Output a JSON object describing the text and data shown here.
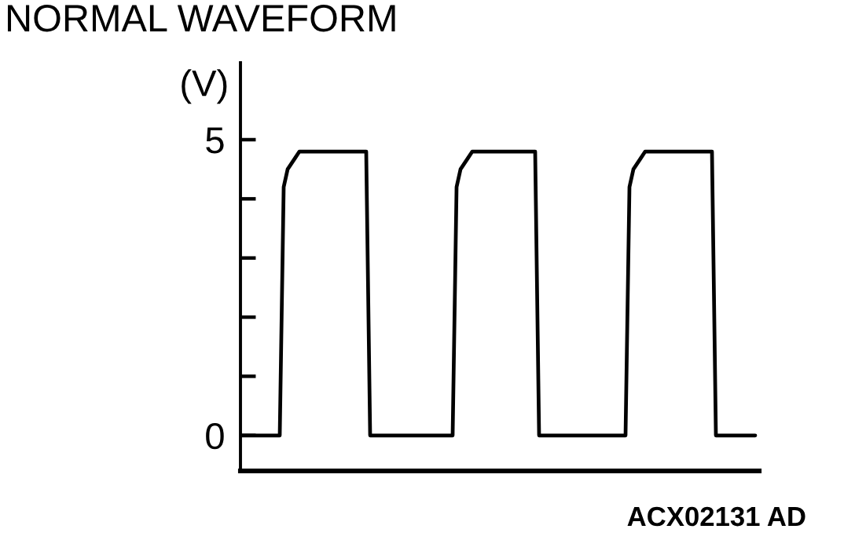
{
  "chart_data": {
    "type": "line",
    "title": "NORMAL WAVEFORM",
    "ylabel": "(V)",
    "annotations": [
      "ACX02131 AD"
    ],
    "categories": [
      null,
      null,
      null,
      null,
      null,
      null,
      null,
      null,
      null,
      null,
      null,
      null,
      null,
      null,
      null,
      null,
      null,
      null,
      null,
      null,
      null,
      null,
      null,
      null,
      null,
      null,
      null,
      null,
      null,
      null,
      null,
      null,
      null,
      null,
      null,
      null,
      null,
      null,
      null,
      null,
      null,
      null,
      null,
      null,
      null,
      null,
      null,
      null,
      null,
      null,
      null,
      null,
      null,
      null,
      null,
      null,
      null,
      null,
      null,
      null,
      null,
      null,
      null,
      null,
      null,
      null,
      null,
      null,
      null,
      null,
      null,
      null,
      null,
      null,
      null,
      null,
      null,
      null,
      null,
      null,
      null,
      null,
      null,
      null,
      null,
      null,
      null,
      null,
      null,
      null,
      null,
      null,
      null,
      null,
      null,
      null,
      null,
      null,
      null,
      null,
      null,
      null,
      null,
      null,
      null,
      null,
      null,
      null,
      null,
      null,
      null,
      null,
      null,
      null,
      null,
      null,
      null,
      null,
      null,
      null,
      null,
      null,
      null,
      null,
      null,
      null,
      null,
      null,
      null,
      null,
      null,
      null
    ],
    "series": [
      {
        "color": "#000000",
        "values": [
          0,
          0,
          0,
          0,
          0,
          0,
          0,
          0,
          0,
          0,
          0,
          4.2,
          4.5,
          4.6,
          4.7,
          4.8,
          4.8,
          4.8,
          4.8,
          4.8,
          4.8,
          4.8,
          4.8,
          4.8,
          4.8,
          4.8,
          4.8,
          4.8,
          4.8,
          4.8,
          4.8,
          4.8,
          4.8,
          0,
          0,
          0,
          0,
          0,
          0,
          0,
          0,
          0,
          0,
          0,
          0,
          0,
          0,
          0,
          0,
          0,
          0,
          0,
          0,
          0,
          0,
          4.2,
          4.5,
          4.6,
          4.7,
          4.8,
          4.8,
          4.8,
          4.8,
          4.8,
          4.8,
          4.8,
          4.8,
          4.8,
          4.8,
          4.8,
          4.8,
          4.8,
          4.8,
          4.8,
          4.8,
          4.8,
          0,
          0,
          0,
          0,
          0,
          0,
          0,
          0,
          0,
          0,
          0,
          0,
          0,
          0,
          0,
          0,
          0,
          0,
          0,
          0,
          0,
          0,
          0,
          4.2,
          4.5,
          4.6,
          4.7,
          4.8,
          4.8,
          4.8,
          4.8,
          4.8,
          4.8,
          4.8,
          4.8,
          4.8,
          4.8,
          4.8,
          4.8,
          4.8,
          4.8,
          4.8,
          4.8,
          4.8,
          4.8,
          0,
          0,
          0,
          0,
          0,
          0,
          0,
          0,
          0,
          0,
          0
        ]
      }
    ],
    "ylim": [
      -0.6,
      6.3
    ],
    "yticks": [
      0,
      {
        "value": 1,
        "label": null
      },
      {
        "value": 2,
        "label": null
      },
      {
        "value": 3,
        "label": null
      },
      {
        "value": 4,
        "label": null
      },
      5
    ],
    "tick_labels": "y",
    "line_style": "solid"
  }
}
